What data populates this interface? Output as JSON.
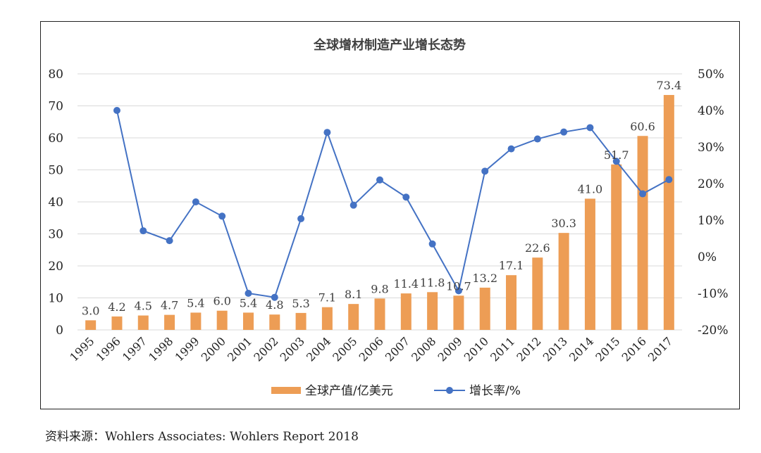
{
  "source_note": {
    "label": "资料来源：",
    "text": "Wohlers Associates: Wohlers Report 2018"
  },
  "colors": {
    "bar": "#ED9D55",
    "line": "#4472C4",
    "marker": "#4472C4",
    "grid": "#D9D9D9",
    "text": "#333333"
  },
  "chart_data": {
    "type": "bar",
    "title": "全球增材制造产业增长态势",
    "categories": [
      "1995",
      "1996",
      "1997",
      "1998",
      "1999",
      "2000",
      "2001",
      "2002",
      "2003",
      "2004",
      "2005",
      "2006",
      "2007",
      "2008",
      "2009",
      "2010",
      "2011",
      "2012",
      "2013",
      "2014",
      "2015",
      "2016",
      "2017"
    ],
    "series": [
      {
        "name": "全球产值/亿美元",
        "type": "bar",
        "axis": "left",
        "values": [
          3.0,
          4.2,
          4.5,
          4.7,
          5.4,
          6.0,
          5.4,
          4.8,
          5.3,
          7.1,
          8.1,
          9.8,
          11.4,
          11.8,
          10.7,
          13.2,
          17.1,
          22.6,
          30.3,
          41.0,
          51.7,
          60.6,
          73.4
        ],
        "labels": [
          "3.0",
          "4.2",
          "4.5",
          "4.7",
          "5.4",
          "6.0",
          "5.4",
          "4.8",
          "5.3",
          "7.1",
          "8.1",
          "9.8",
          "11.4",
          "11.8",
          "10.7",
          "13.2",
          "17.1",
          "22.6",
          "30.3",
          "41.0",
          "51.7",
          "60.6",
          "73.4"
        ]
      },
      {
        "name": "增长率/%",
        "type": "line",
        "axis": "right",
        "values": [
          null,
          40,
          7.1,
          4.4,
          15,
          11.1,
          -10,
          -11.1,
          10.4,
          34,
          14.1,
          21,
          16.3,
          3.5,
          -9.3,
          23.4,
          29.5,
          32.2,
          34.1,
          35.3,
          26.1,
          17.2,
          21.1
        ]
      }
    ],
    "left_axis": {
      "ylim": [
        0,
        80
      ],
      "ticks": [
        "0",
        "10",
        "20",
        "30",
        "40",
        "50",
        "60",
        "70",
        "80"
      ]
    },
    "right_axis": {
      "ylim": [
        -20,
        50
      ],
      "ticks": [
        "-20%",
        "-10%",
        "0%",
        "10%",
        "20%",
        "30%",
        "40%",
        "50%"
      ]
    },
    "grid": true,
    "legend": {
      "position": "bottom"
    }
  }
}
